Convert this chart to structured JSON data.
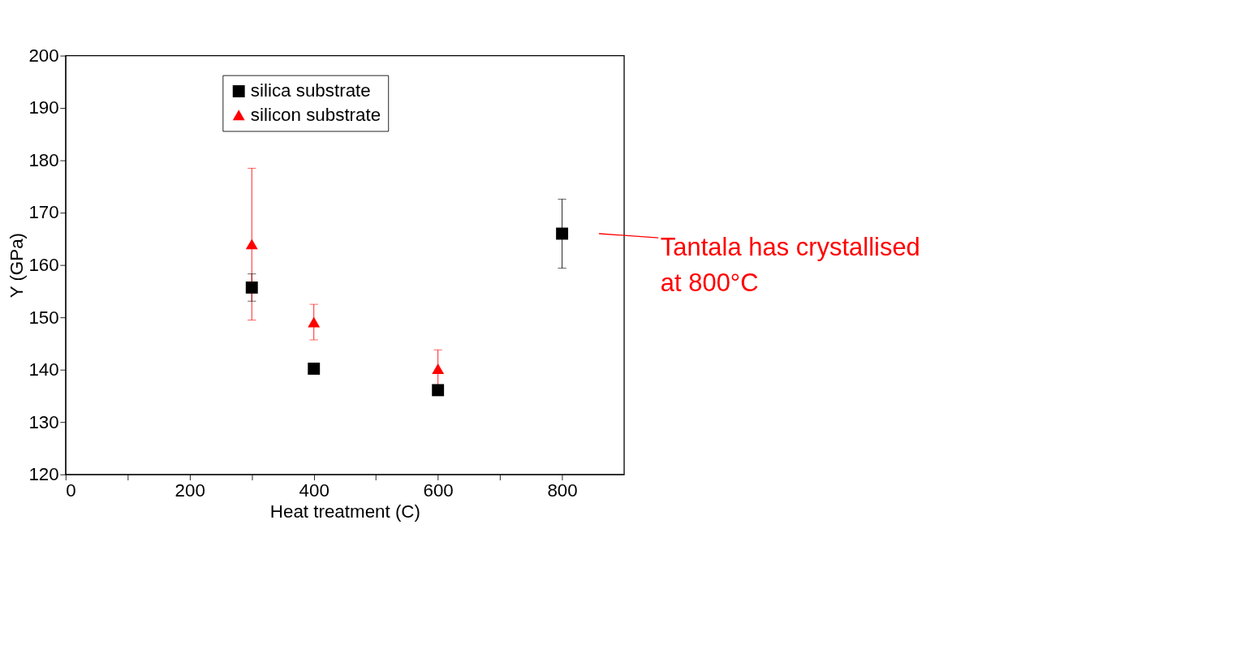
{
  "chart_data": {
    "type": "scatter",
    "xlabel": "Heat treatment (C)",
    "ylabel": "Y (GPa)",
    "xlim": [
      0,
      900
    ],
    "xticks": [
      0,
      {
        "value": 100,
        "label": null
      },
      200,
      {
        "value": 300,
        "label": null
      },
      400,
      {
        "value": 500,
        "label": null
      },
      600,
      {
        "value": 700,
        "label": null
      },
      800
    ],
    "ylim": [
      120,
      200
    ],
    "yticks": [
      120,
      130,
      140,
      150,
      160,
      170,
      180,
      190,
      200
    ],
    "series": [
      {
        "name": "silica substrate",
        "color": "#000000",
        "marker": "square",
        "x": [
          300,
          400,
          600,
          800
        ],
        "values": [
          155.7,
          140.2,
          136.1,
          166.0
        ],
        "errors": [
          2.6,
          0.8,
          1.0,
          6.6
        ]
      },
      {
        "name": "silicon substrate",
        "color": "#ff0000",
        "marker": "triangle",
        "x": [
          300,
          400,
          600
        ],
        "values": [
          164.0,
          149.1,
          140.2
        ],
        "errors": [
          14.5,
          3.4,
          3.6
        ]
      }
    ],
    "annotations": [
      "Tantala has crystallised\nat 800°C"
    ],
    "legend": "top",
    "grid": false
  }
}
